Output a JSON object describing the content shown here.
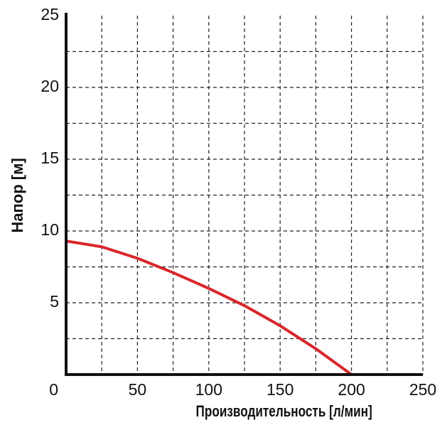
{
  "chart_data": {
    "type": "line",
    "x_label": "Производительность [л/мин]",
    "y_label": "Напор [м]",
    "x": [
      0,
      25,
      50,
      75,
      100,
      125,
      150,
      175,
      200
    ],
    "series": [
      {
        "name": "Напор",
        "color": "#d9262b",
        "values": [
          9.3,
          8.9,
          8.1,
          7.1,
          6.0,
          4.8,
          3.4,
          1.8,
          0
        ]
      }
    ],
    "xlim": [
      0,
      250
    ],
    "ylim": [
      0,
      25
    ],
    "xticks": [
      0,
      50,
      100,
      150,
      200,
      250
    ],
    "yticks": [
      5,
      10,
      15,
      20,
      25
    ],
    "xgrid": [
      25,
      50,
      75,
      100,
      125,
      150,
      175,
      200,
      225,
      250
    ],
    "ygrid": [
      2.5,
      5,
      7.5,
      10,
      12.5,
      15,
      17.5,
      20,
      22.5
    ],
    "grid": true
  }
}
